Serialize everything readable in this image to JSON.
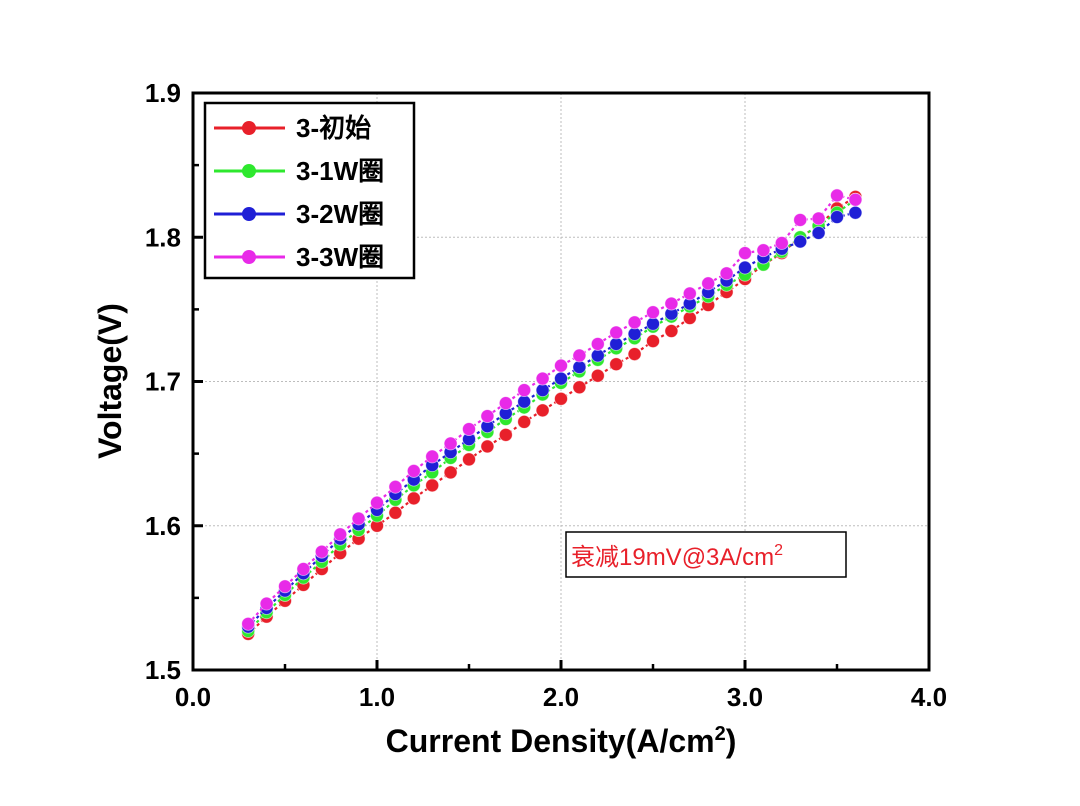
{
  "chart_data": {
    "type": "line",
    "xlabel": "Current Density(A/cm",
    "xlabel_sup": "2",
    "xlabel_close": ")",
    "ylabel": "Voltage(V)",
    "xlim": [
      0.0,
      4.0
    ],
    "ylim": [
      1.5,
      1.9
    ],
    "x_ticks": [
      "0.0",
      "1.0",
      "2.0",
      "3.0",
      "4.0"
    ],
    "y_ticks": [
      "1.5",
      "1.6",
      "1.7",
      "1.8",
      "1.9"
    ],
    "grid": true,
    "legend_position": "top-left",
    "annotation": {
      "text": "衰减19mV@3A/cm",
      "sup": "2",
      "color": "#e8202a"
    },
    "x": [
      0.3,
      0.4,
      0.5,
      0.6,
      0.7,
      0.8,
      0.9,
      1.0,
      1.1,
      1.2,
      1.3,
      1.4,
      1.5,
      1.6,
      1.7,
      1.8,
      1.9,
      2.0,
      2.1,
      2.2,
      2.3,
      2.4,
      2.5,
      2.6,
      2.7,
      2.8,
      2.9,
      3.0,
      3.1,
      3.2,
      3.3,
      3.4,
      3.5,
      3.6
    ],
    "series": [
      {
        "name": "3-初始",
        "color": "#e8202a",
        "values": [
          1.525,
          1.537,
          1.548,
          1.559,
          1.57,
          1.581,
          1.591,
          1.6,
          1.609,
          1.619,
          1.628,
          1.637,
          1.646,
          1.655,
          1.663,
          1.672,
          1.68,
          1.688,
          1.696,
          1.704,
          1.712,
          1.719,
          1.728,
          1.735,
          1.744,
          1.753,
          1.762,
          1.771,
          1.781,
          1.789,
          1.8,
          1.808,
          1.82,
          1.828
        ]
      },
      {
        "name": "3-1W圈",
        "color": "#2ee82e",
        "values": [
          1.527,
          1.54,
          1.552,
          1.564,
          1.575,
          1.587,
          1.597,
          1.607,
          1.618,
          1.628,
          1.637,
          1.647,
          1.656,
          1.665,
          1.674,
          1.682,
          1.691,
          1.699,
          1.707,
          1.715,
          1.723,
          1.73,
          1.738,
          1.745,
          1.752,
          1.759,
          1.767,
          1.774,
          1.781,
          1.79,
          1.8,
          1.808,
          1.817,
          1.826
        ]
      },
      {
        "name": "3-2W圈",
        "color": "#1f1fd6",
        "values": [
          1.53,
          1.543,
          1.555,
          1.567,
          1.579,
          1.591,
          1.601,
          1.611,
          1.622,
          1.632,
          1.642,
          1.651,
          1.66,
          1.669,
          1.678,
          1.686,
          1.694,
          1.702,
          1.71,
          1.718,
          1.726,
          1.733,
          1.74,
          1.747,
          1.754,
          1.762,
          1.77,
          1.779,
          1.786,
          1.792,
          1.797,
          1.803,
          1.814,
          1.817
        ]
      },
      {
        "name": "3-3W圈",
        "color": "#e82ae8",
        "values": [
          1.532,
          1.546,
          1.558,
          1.57,
          1.582,
          1.594,
          1.605,
          1.616,
          1.627,
          1.638,
          1.648,
          1.657,
          1.667,
          1.676,
          1.685,
          1.694,
          1.702,
          1.711,
          1.718,
          1.726,
          1.734,
          1.741,
          1.748,
          1.754,
          1.761,
          1.768,
          1.775,
          1.789,
          1.791,
          1.796,
          1.812,
          1.813,
          1.829,
          1.826
        ]
      }
    ]
  }
}
